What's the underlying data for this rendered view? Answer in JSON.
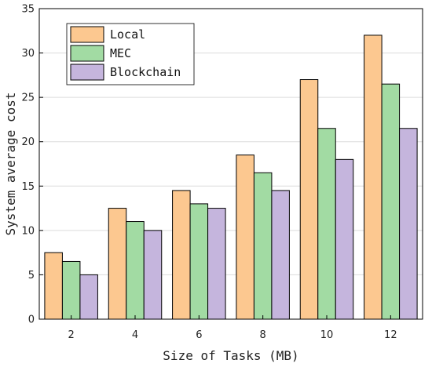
{
  "chart_data": {
    "type": "bar",
    "title": "",
    "xlabel": "Size of Tasks (MB)",
    "ylabel": "System average cost",
    "categories": [
      "2",
      "4",
      "6",
      "8",
      "10",
      "12"
    ],
    "series": [
      {
        "name": "Local",
        "color": "#fcc890",
        "values": [
          7.5,
          12.5,
          14.5,
          18.5,
          27,
          32
        ]
      },
      {
        "name": "MEC",
        "color": "#a2dba3",
        "values": [
          6.5,
          11,
          13,
          16.5,
          21.5,
          26.5
        ]
      },
      {
        "name": "Blockchain",
        "color": "#c5b5dd",
        "values": [
          5,
          10,
          12.5,
          14.5,
          18,
          21.5
        ]
      }
    ],
    "ylim": [
      0,
      35
    ],
    "yticks": [
      "0",
      "5",
      "10",
      "15",
      "20",
      "25",
      "30",
      "35"
    ],
    "grid": true,
    "legend_position": "top-left"
  }
}
